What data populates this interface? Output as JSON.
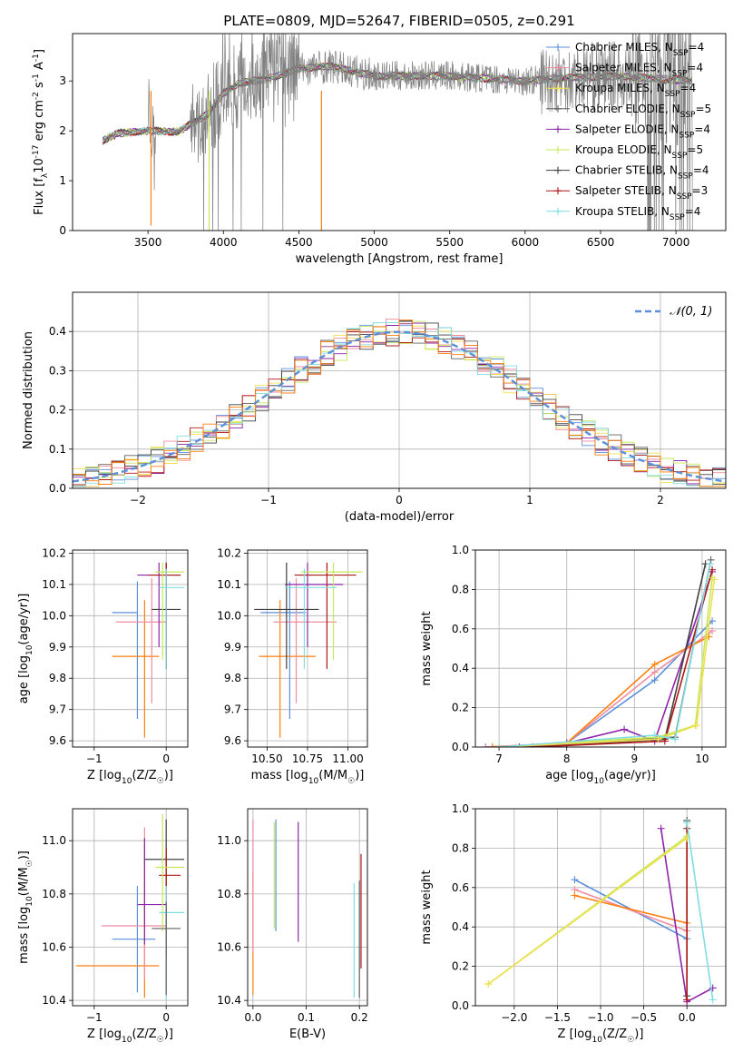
{
  "figure": {
    "title": "PLATE=0809, MJD=52647, FIBERID=0505, z=0.291"
  },
  "chart_data": [
    {
      "id": "spectrum",
      "type": "line",
      "xlabel": "wavelength [Angstrom, rest frame]",
      "ylabel": "Flux [f",
      "ylabel_sub": "λ",
      "ylabel_rest": "10",
      "ylabel_exp1": "-17",
      "ylabel_mid": " erg cm",
      "ylabel_exp2": "-2",
      "ylabel_mid2": " s",
      "ylabel_exp3": "-1",
      "ylabel_end": " A",
      "ylabel_exp4": "-1",
      "ylabel_close": "]",
      "xlim": [
        3000,
        7330
      ],
      "ylim": [
        0,
        3.95
      ],
      "xticks": [
        3500,
        4000,
        4500,
        5000,
        5500,
        6000,
        6500,
        7000
      ],
      "yticks": [
        0,
        1,
        2,
        3
      ],
      "grid": false,
      "legend_position": "right",
      "data_range": [
        3200,
        7110
      ],
      "continuum_anchors": [
        [
          3200,
          1.8
        ],
        [
          3300,
          1.95
        ],
        [
          3500,
          2.0
        ],
        [
          3700,
          1.98
        ],
        [
          3900,
          2.35
        ],
        [
          4000,
          2.75
        ],
        [
          4100,
          2.95
        ],
        [
          4300,
          3.05
        ],
        [
          4500,
          3.25
        ],
        [
          4700,
          3.3
        ],
        [
          5000,
          3.1
        ],
        [
          5500,
          3.1
        ],
        [
          6000,
          3.0
        ],
        [
          6200,
          3.05
        ],
        [
          6600,
          3.1
        ],
        [
          7110,
          3.0
        ]
      ],
      "series": [
        {
          "name": "Chabrier MILES, N",
          "sub": "SSP",
          "suffix": "=4",
          "color": "#5b8fd9",
          "marker": "+"
        },
        {
          "name": "Salpeter MILES, N",
          "sub": "SSP",
          "suffix": "=4",
          "color": "#f08ba0",
          "marker": "+"
        },
        {
          "name": "Kroupa MILES, N",
          "sub": "SSP",
          "suffix": "=4",
          "color": "#f0e050",
          "marker": "+"
        },
        {
          "name": "Chabrier ELODIE, N",
          "sub": "SSP",
          "suffix": "=5",
          "color": "#606060",
          "marker": "+"
        },
        {
          "name": "Salpeter ELODIE, N",
          "sub": "SSP",
          "suffix": "=4",
          "color": "#8e24aa",
          "marker": "+"
        },
        {
          "name": "Kroupa ELODIE, N",
          "sub": "SSP",
          "suffix": "=5",
          "color": "#c6e85a",
          "marker": "+"
        },
        {
          "name": "Chabrier STELIB, N",
          "sub": "SSP",
          "suffix": "=4",
          "color": "#404040",
          "marker": "+"
        },
        {
          "name": "Salpeter STELIB, N",
          "sub": "SSP",
          "suffix": "=3",
          "color": "#b01818",
          "marker": "+"
        },
        {
          "name": "Kroupa STELIB, N",
          "sub": "SSP",
          "suffix": "=4",
          "color": "#80dde0",
          "marker": "+"
        }
      ],
      "data_color": "#808080",
      "spikes": [
        {
          "x": 3520,
          "y": 0.1,
          "color": "#ff7f0e"
        },
        {
          "x": 3905,
          "y": 0.0,
          "color": "#c6e85a"
        },
        {
          "x": 4650,
          "y": 0.0,
          "color": "#ff7f0e"
        }
      ]
    },
    {
      "id": "residuals",
      "type": "histogram",
      "xlabel": "(data-model)/error",
      "ylabel": "Normed distribution",
      "xlim": [
        -2.5,
        2.5
      ],
      "ylim": [
        0,
        0.5
      ],
      "xticks": [
        -2,
        -1,
        0,
        1,
        2
      ],
      "yticks": [
        0.0,
        0.1,
        0.2,
        0.3,
        0.4
      ],
      "grid": true,
      "legend_label": "𝒩(0, 1)",
      "legend_position": "top-right",
      "reference_curve": {
        "mean": 0,
        "sigma": 1,
        "color": "#5b8fd9"
      },
      "bin_width": 0.1,
      "series_colors": [
        "#5b8fd9",
        "#f08ba0",
        "#f0e050",
        "#606060",
        "#8e24aa",
        "#c6e85a",
        "#404040",
        "#b01818",
        "#80dde0",
        "#ff7f0e"
      ]
    },
    {
      "id": "age-vs-Z",
      "type": "errorbar",
      "xlabel": "Z [log",
      "xlabel_sub": "10",
      "xlabel_rest": "(Z/Z",
      "xlabel_sun": "☉",
      "xlabel_close": ")]",
      "ylabel": "age  [log",
      "ylabel_sub": "10",
      "ylabel_rest": "(age/yr)]",
      "xlim": [
        -1.3,
        0.3
      ],
      "ylim": [
        9.58,
        10.21
      ],
      "xticks": [
        -1,
        0
      ],
      "yticks": [
        9.6,
        9.7,
        9.8,
        9.9,
        10.0,
        10.1,
        10.2
      ],
      "grid": true,
      "points": [
        {
          "x": -0.4,
          "xerr": [
            0.35,
            0.0
          ],
          "y": 10.01,
          "yerr": [
            0.34,
            0.1
          ],
          "color": "#5b8fd9"
        },
        {
          "x": -0.3,
          "xerr": [
            0.45,
            0.2
          ],
          "y": 9.87,
          "yerr": [
            0.26,
            0.18
          ],
          "color": "#ff7f0e"
        },
        {
          "x": -0.2,
          "xerr": [
            0.5,
            0.2
          ],
          "y": 9.98,
          "yerr": [
            0.26,
            0.14
          ],
          "color": "#f08ba0"
        },
        {
          "x": -0.1,
          "xerr": [
            0.3,
            0.3
          ],
          "y": 10.13,
          "yerr": [
            0.23,
            0.04
          ],
          "color": "#8e24aa"
        },
        {
          "x": 0.0,
          "xerr": [
            0.2,
            0.2
          ],
          "y": 10.02,
          "yerr": [
            0.19,
            0.15
          ],
          "color": "#404040"
        },
        {
          "x": 0.0,
          "xerr": [
            0.25,
            0.2
          ],
          "y": 10.13,
          "yerr": [
            0.3,
            0.04
          ],
          "color": "#b01818"
        },
        {
          "x": -0.05,
          "xerr": [
            0.1,
            0.3
          ],
          "y": 10.14,
          "yerr": [
            0.28,
            0.03
          ],
          "color": "#c6e85a"
        },
        {
          "x": 0.0,
          "xerr": [
            0.1,
            0.25
          ],
          "y": 10.09,
          "yerr": [
            0.26,
            0.06
          ],
          "color": "#80dde0"
        }
      ]
    },
    {
      "id": "age-vs-mass",
      "type": "errorbar",
      "xlabel": "mass [log",
      "xlabel_sub": "10",
      "xlabel_rest": "(M/M",
      "xlabel_sun": "☉",
      "xlabel_close": ")]",
      "xlim": [
        10.38,
        11.12
      ],
      "ylim": [
        9.58,
        10.21
      ],
      "xticks": [
        10.5,
        10.75,
        11.0
      ],
      "xticklabels": [
        "10.50",
        "10.75",
        "11.00"
      ],
      "yticks": [
        9.6,
        9.7,
        9.8,
        9.9,
        10.0,
        10.1,
        10.2
      ],
      "grid": true,
      "points": [
        {
          "x": 10.64,
          "xerr": [
            0.18,
            0.1
          ],
          "y": 10.01,
          "yerr": [
            0.34,
            0.1
          ],
          "color": "#5b8fd9"
        },
        {
          "x": 10.58,
          "xerr": [
            0.13,
            0.22
          ],
          "y": 9.87,
          "yerr": [
            0.26,
            0.18
          ],
          "color": "#ff7f0e"
        },
        {
          "x": 10.68,
          "xerr": [
            0.14,
            0.25
          ],
          "y": 9.98,
          "yerr": [
            0.26,
            0.14
          ],
          "color": "#f08ba0"
        },
        {
          "x": 10.75,
          "xerr": [
            0.14,
            0.22
          ],
          "y": 10.1,
          "yerr": [
            0.2,
            0.07
          ],
          "color": "#8e24aa"
        },
        {
          "x": 10.62,
          "xerr": [
            0.2,
            0.2
          ],
          "y": 10.02,
          "yerr": [
            0.19,
            0.15
          ],
          "color": "#404040"
        },
        {
          "x": 10.87,
          "xerr": [
            0.2,
            0.18
          ],
          "y": 10.13,
          "yerr": [
            0.3,
            0.04
          ],
          "color": "#b01818"
        },
        {
          "x": 10.91,
          "xerr": [
            0.2,
            0.18
          ],
          "y": 10.14,
          "yerr": [
            0.28,
            0.03
          ],
          "color": "#c6e85a"
        },
        {
          "x": 10.73,
          "xerr": [
            0.12,
            0.2
          ],
          "y": 10.09,
          "yerr": [
            0.26,
            0.06
          ],
          "color": "#80dde0"
        }
      ]
    },
    {
      "id": "massweight-vs-age",
      "type": "line",
      "xlabel": "age  [log",
      "xlabel_sub": "10",
      "xlabel_rest": "(age/yr)]",
      "ylabel": "mass weight",
      "xlim": [
        6.65,
        10.35
      ],
      "ylim": [
        0,
        1.0
      ],
      "xticks": [
        7,
        8,
        9,
        10
      ],
      "yticks": [
        0.0,
        0.2,
        0.4,
        0.6,
        0.8,
        1.0
      ],
      "grid": true,
      "series": [
        {
          "color": "#5b8fd9",
          "x": [
            6.8,
            8.0,
            9.3,
            10.15
          ],
          "y": [
            0.0,
            0.02,
            0.34,
            0.64
          ]
        },
        {
          "color": "#f08ba0",
          "x": [
            6.8,
            8.0,
            9.3,
            10.15
          ],
          "y": [
            0.0,
            0.02,
            0.38,
            0.59
          ]
        },
        {
          "color": "#ff7f0e",
          "x": [
            6.9,
            8.0,
            9.3,
            10.1
          ],
          "y": [
            0.0,
            0.02,
            0.42,
            0.56
          ]
        },
        {
          "color": "#8e24aa",
          "x": [
            7.3,
            8.0,
            8.85,
            9.3,
            10.15
          ],
          "y": [
            0.0,
            0.02,
            0.09,
            0.03,
            0.89
          ]
        },
        {
          "color": "#404040",
          "x": [
            7.5,
            9.45,
            10.05
          ],
          "y": [
            0.0,
            0.04,
            0.93
          ]
        },
        {
          "color": "#606060",
          "x": [
            7.5,
            9.6,
            10.13
          ],
          "y": [
            0.0,
            0.05,
            0.95
          ]
        },
        {
          "color": "#b01818",
          "x": [
            7.5,
            9.45,
            10.15
          ],
          "y": [
            0.0,
            0.03,
            0.9
          ]
        },
        {
          "color": "#c6e85a",
          "x": [
            7.0,
            9.35,
            9.9,
            10.15
          ],
          "y": [
            0.0,
            0.05,
            0.11,
            0.86
          ]
        },
        {
          "color": "#f0e050",
          "x": [
            7.0,
            9.35,
            9.92,
            10.18
          ],
          "y": [
            0.0,
            0.04,
            0.11,
            0.85
          ]
        },
        {
          "color": "#80dde0",
          "x": [
            7.0,
            9.3,
            9.6,
            10.12
          ],
          "y": [
            0.0,
            0.06,
            0.04,
            0.93
          ]
        }
      ]
    },
    {
      "id": "mass-vs-Z",
      "type": "errorbar",
      "xlabel": "Z [log",
      "xlabel_sub": "10",
      "xlabel_rest": "(Z/Z",
      "xlabel_sun": "☉",
      "xlabel_close": ")]",
      "ylabel": "mass [log",
      "ylabel_sub": "10",
      "ylabel_rest": "(M/M",
      "ylabel_sun": "☉",
      "ylabel_close": ")]",
      "xlim": [
        -1.3,
        0.3
      ],
      "ylim": [
        10.38,
        11.12
      ],
      "xticks": [
        -1,
        0
      ],
      "yticks": [
        10.4,
        10.6,
        10.8,
        11.0
      ],
      "grid": true,
      "points": [
        {
          "x": -0.4,
          "xerr": [
            0.35,
            0.25
          ],
          "y": 10.63,
          "yerr": [
            0.2,
            0.2
          ],
          "color": "#5b8fd9"
        },
        {
          "x": -0.3,
          "xerr": [
            0.95,
            0.2
          ],
          "y": 10.53,
          "yerr": [
            0.12,
            0.45
          ],
          "color": "#ff7f0e"
        },
        {
          "x": -0.3,
          "xerr": [
            0.6,
            0.3
          ],
          "y": 10.68,
          "yerr": [
            0.2,
            0.37
          ],
          "color": "#f08ba0"
        },
        {
          "x": -0.3,
          "xerr": [
            0.1,
            0.3
          ],
          "y": 10.76,
          "yerr": [
            0.15,
            0.25
          ],
          "color": "#8e24aa"
        },
        {
          "x": 0.0,
          "xerr": [
            0.3,
            0.25
          ],
          "y": 10.93,
          "yerr": [
            0.1,
            0.15
          ],
          "color": "#404040"
        },
        {
          "x": 0.0,
          "xerr": [
            0.1,
            0.2
          ],
          "y": 10.87,
          "yerr": [
            0.3,
            0.1
          ],
          "color": "#b01818"
        },
        {
          "x": -0.05,
          "xerr": [
            0.1,
            0.3
          ],
          "y": 10.9,
          "yerr": [
            0.24,
            0.2
          ],
          "color": "#c6e85a"
        },
        {
          "x": 0.0,
          "xerr": [
            0.1,
            0.25
          ],
          "y": 10.73,
          "yerr": [
            0.33,
            0.1
          ],
          "color": "#80dde0"
        },
        {
          "x": 0.0,
          "xerr": [
            0.2,
            0.2
          ],
          "y": 10.67,
          "yerr": [
            0.25,
            0.1
          ],
          "color": "#606060"
        }
      ]
    },
    {
      "id": "mass-vs-EBV",
      "type": "errorbar",
      "xlabel": "E(B-V)",
      "xlim": [
        -0.01,
        0.215
      ],
      "ylim": [
        10.38,
        11.12
      ],
      "xticks": [
        0.0,
        0.1,
        0.2
      ],
      "xticklabels": [
        "0.0",
        "0.1",
        "0.2"
      ],
      "yticks": [
        10.4,
        10.6,
        10.8,
        11.0
      ],
      "grid": true,
      "points": [
        {
          "x": 0.0,
          "y": 10.65,
          "yerr": [
            0.23,
            0.23
          ],
          "color": "#ff7f0e"
        },
        {
          "x": 0.0,
          "y": 10.78,
          "yerr": [
            0.2,
            0.3
          ],
          "color": "#f08ba0"
        },
        {
          "x": 0.04,
          "y": 10.87,
          "yerr": [
            0.2,
            0.2
          ],
          "color": "#c6e85a"
        },
        {
          "x": 0.043,
          "y": 10.9,
          "yerr": [
            0.24,
            0.18
          ],
          "color": "#5b8fd9"
        },
        {
          "x": 0.085,
          "y": 10.85,
          "yerr": [
            0.23,
            0.22
          ],
          "color": "#8e24aa"
        },
        {
          "x": 0.19,
          "y": 10.63,
          "yerr": [
            0.22,
            0.21
          ],
          "color": "#80dde0"
        },
        {
          "x": 0.2,
          "y": 10.65,
          "yerr": [
            0.24,
            0.2
          ],
          "color": "#606060"
        },
        {
          "x": 0.203,
          "y": 10.73,
          "yerr": [
            0.21,
            0.22
          ],
          "color": "#b01818"
        }
      ]
    },
    {
      "id": "massweight-vs-Z",
      "type": "line",
      "xlabel": "Z [log",
      "xlabel_sub": "10",
      "xlabel_rest": "(Z/Z",
      "xlabel_sun": "☉",
      "xlabel_close": ")]",
      "ylabel": "mass weight",
      "xlim": [
        -2.45,
        0.45
      ],
      "ylim": [
        0,
        1.0
      ],
      "xticks": [
        -2.0,
        -1.5,
        -1.0,
        -0.5,
        0.0
      ],
      "xticklabels": [
        "−2.0",
        "−1.5",
        "−1.0",
        "−0.5",
        "0.0"
      ],
      "yticks": [
        0.0,
        0.2,
        0.4,
        0.6,
        0.8,
        1.0
      ],
      "grid": true,
      "series": [
        {
          "color": "#5b8fd9",
          "x": [
            -1.3,
            0.0
          ],
          "y": [
            0.64,
            0.34
          ]
        },
        {
          "color": "#f08ba0",
          "x": [
            -1.3,
            0.0
          ],
          "y": [
            0.59,
            0.38
          ]
        },
        {
          "color": "#ff7f0e",
          "x": [
            -1.3,
            0.0
          ],
          "y": [
            0.56,
            0.42
          ]
        },
        {
          "color": "#8e24aa",
          "x": [
            -0.3,
            0.0,
            0.3
          ],
          "y": [
            0.9,
            0.02,
            0.09
          ]
        },
        {
          "color": "#404040",
          "x": [
            0.0,
            0.0
          ],
          "y": [
            0.05,
            0.94
          ]
        },
        {
          "color": "#b01818",
          "x": [
            0.0,
            0.0
          ],
          "y": [
            0.03,
            0.9
          ]
        },
        {
          "color": "#c6e85a",
          "x": [
            -2.3,
            0.0
          ],
          "y": [
            0.11,
            0.86
          ]
        },
        {
          "color": "#f0e050",
          "x": [
            -2.3,
            0.0
          ],
          "y": [
            0.11,
            0.85
          ]
        },
        {
          "color": "#80dde0",
          "x": [
            0.0,
            0.3
          ],
          "y": [
            0.93,
            0.03
          ]
        }
      ]
    }
  ]
}
